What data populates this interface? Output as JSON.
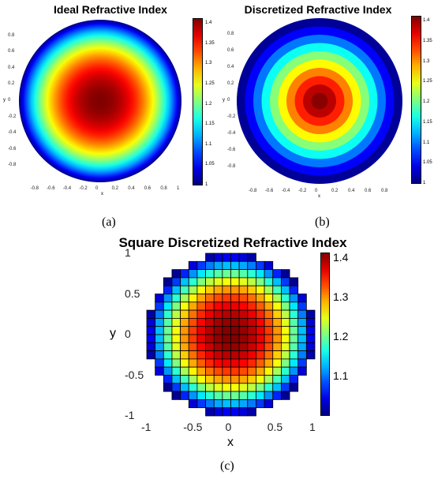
{
  "panels": {
    "a": {
      "title": "Ideal Refractive Index",
      "xticks": [
        "-0.8",
        "-0.6",
        "-0.4",
        "-0.2",
        "0",
        "0.2",
        "0.4",
        "0.6",
        "0.8",
        "1"
      ],
      "yticks": [
        "0.8",
        "0.6",
        "0.4",
        "0.2",
        "0",
        "-0.2",
        "-0.4",
        "-0.6",
        "-0.8"
      ],
      "xlabel": "x",
      "ylabel": "y",
      "cbar_ticks": [
        "1.4",
        "1.35",
        "1.3",
        "1.25",
        "1.2",
        "1.15",
        "1.1",
        "1.05",
        "1"
      ],
      "caption": "(a)"
    },
    "b": {
      "title": "Discretized Refractive Index",
      "xticks": [
        "-0.8",
        "-0.6",
        "-0.4",
        "-0.2",
        "0",
        "0.2",
        "0.4",
        "0.6",
        "0.8"
      ],
      "yticks": [
        "0.8",
        "0.6",
        "0.4",
        "0.2",
        "0",
        "-0.2",
        "-0.4",
        "-0.6",
        "-0.8"
      ],
      "xlabel": "x",
      "ylabel": "y",
      "cbar_ticks": [
        "1.4",
        "1.35",
        "1.3",
        "1.25",
        "1.2",
        "1.15",
        "1.1",
        "1.05",
        "1"
      ],
      "caption": "(b)"
    },
    "c": {
      "title": "Square Discretized Refractive Index",
      "xticks": [
        "-1",
        "-0.5",
        "0",
        "0.5",
        "1"
      ],
      "yticks": [
        "1",
        "0.5",
        "0",
        "-0.5",
        "-1"
      ],
      "xlabel": "x",
      "ylabel": "y",
      "cbar_ticks": [
        "1.4",
        "1.3",
        "1.2",
        "1.1"
      ],
      "caption": "(c)"
    }
  },
  "chart_data": [
    {
      "type": "heatmap",
      "title": "Ideal Refractive Index",
      "xlabel": "x",
      "ylabel": "y",
      "xlim": [
        -1,
        1
      ],
      "ylim": [
        -1,
        1
      ],
      "clim": [
        1.0,
        1.414
      ],
      "colormap": "jet",
      "domain": "unit disk",
      "field": "continuous, radially decreasing from about 1.41 at center to 1.0 at radius 1"
    },
    {
      "type": "heatmap",
      "title": "Discretized Refractive Index",
      "xlabel": "x",
      "ylabel": "y",
      "xlim": [
        -1,
        1
      ],
      "ylim": [
        -1,
        1
      ],
      "clim": [
        1.0,
        1.414
      ],
      "colormap": "jet",
      "domain": "unit disk",
      "rings": [
        {
          "r_outer": 0.1,
          "n": 1.41
        },
        {
          "r_outer": 0.2,
          "n": 1.39
        },
        {
          "r_outer": 0.3,
          "n": 1.35
        },
        {
          "r_outer": 0.4,
          "n": 1.31
        },
        {
          "r_outer": 0.5,
          "n": 1.26
        },
        {
          "r_outer": 0.6,
          "n": 1.21
        },
        {
          "r_outer": 0.7,
          "n": 1.16
        },
        {
          "r_outer": 0.8,
          "n": 1.1
        },
        {
          "r_outer": 0.9,
          "n": 1.05
        },
        {
          "r_outer": 1.0,
          "n": 1.01
        }
      ]
    },
    {
      "type": "heatmap",
      "title": "Square Discretized Refractive Index",
      "xlabel": "x",
      "ylabel": "y",
      "xlim": [
        -1,
        1
      ],
      "ylim": [
        -1,
        1
      ],
      "clim": [
        1.0,
        1.414
      ],
      "colormap": "jet",
      "grid_cells": 20,
      "domain": "unit disk (square cells)"
    }
  ]
}
